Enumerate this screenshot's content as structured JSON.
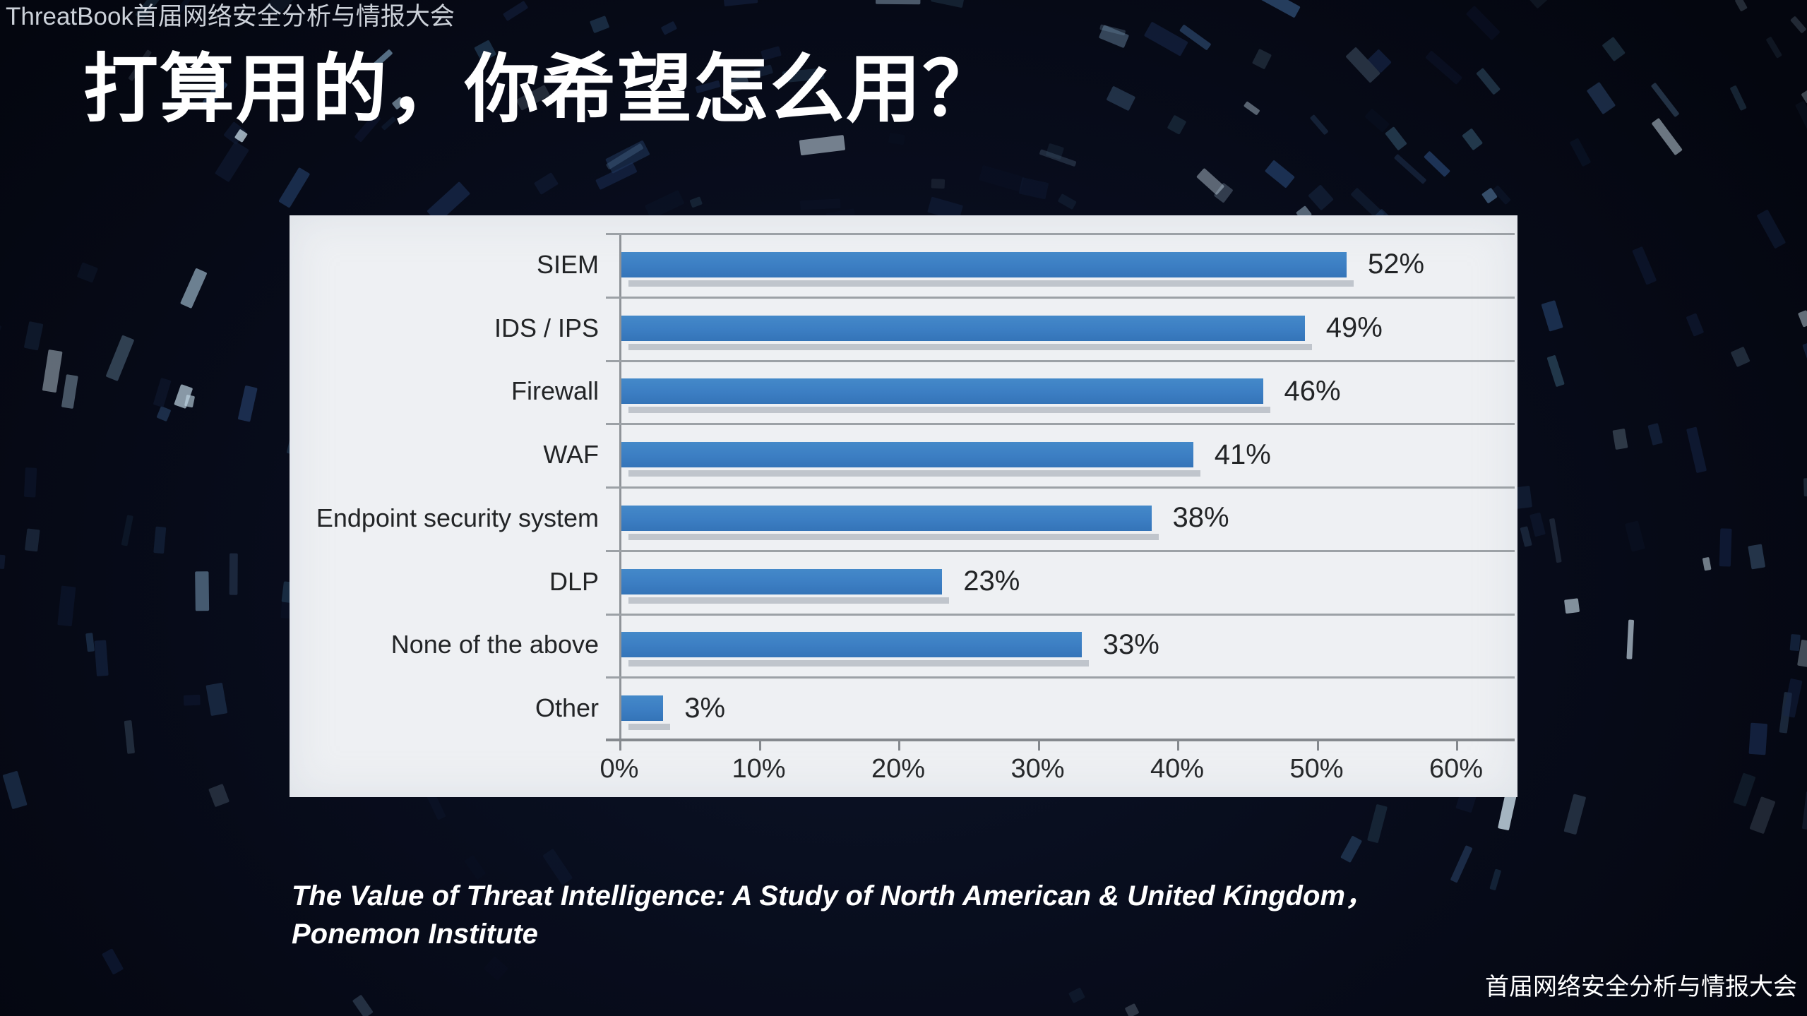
{
  "slide": {
    "header": "ThreatBook首届网络安全分析与情报大会",
    "title": "打算用的，你希望怎么用？",
    "caption_line1": "The Value of Threat Intelligence: A Study of North American & United Kingdom，",
    "caption_line2": "Ponemon Institute",
    "footer": "首届网络安全分析与情报大会"
  },
  "chart_data": {
    "type": "bar",
    "orientation": "horizontal",
    "title": "",
    "xlabel": "",
    "ylabel": "",
    "categories": [
      "SIEM",
      "IDS / IPS",
      "Firewall",
      "WAF",
      "Endpoint security system",
      "DLP",
      "None of the above",
      "Other"
    ],
    "values": [
      52,
      49,
      46,
      41,
      38,
      23,
      33,
      3
    ],
    "value_labels": [
      "52%",
      "49%",
      "46%",
      "41%",
      "38%",
      "23%",
      "33%",
      "3%"
    ],
    "x_ticks": [
      "0%",
      "10%",
      "20%",
      "30%",
      "40%",
      "50%",
      "60%"
    ],
    "x_tick_values": [
      0,
      10,
      20,
      30,
      40,
      50,
      60
    ],
    "xlim": [
      0,
      60
    ],
    "grid": "horizontal row separator lines",
    "legend": null
  },
  "colors": {
    "background": "#070b18",
    "bar_blue": "#3c7ec3",
    "bar_shadow": "#b7bdc4",
    "panel_background": "#eef0f3",
    "gridline": "#9ca1a6",
    "axis": "#85898e",
    "chart_text": "#222426",
    "header_text": "#ccd1d9",
    "title_text": "#ffffff"
  }
}
